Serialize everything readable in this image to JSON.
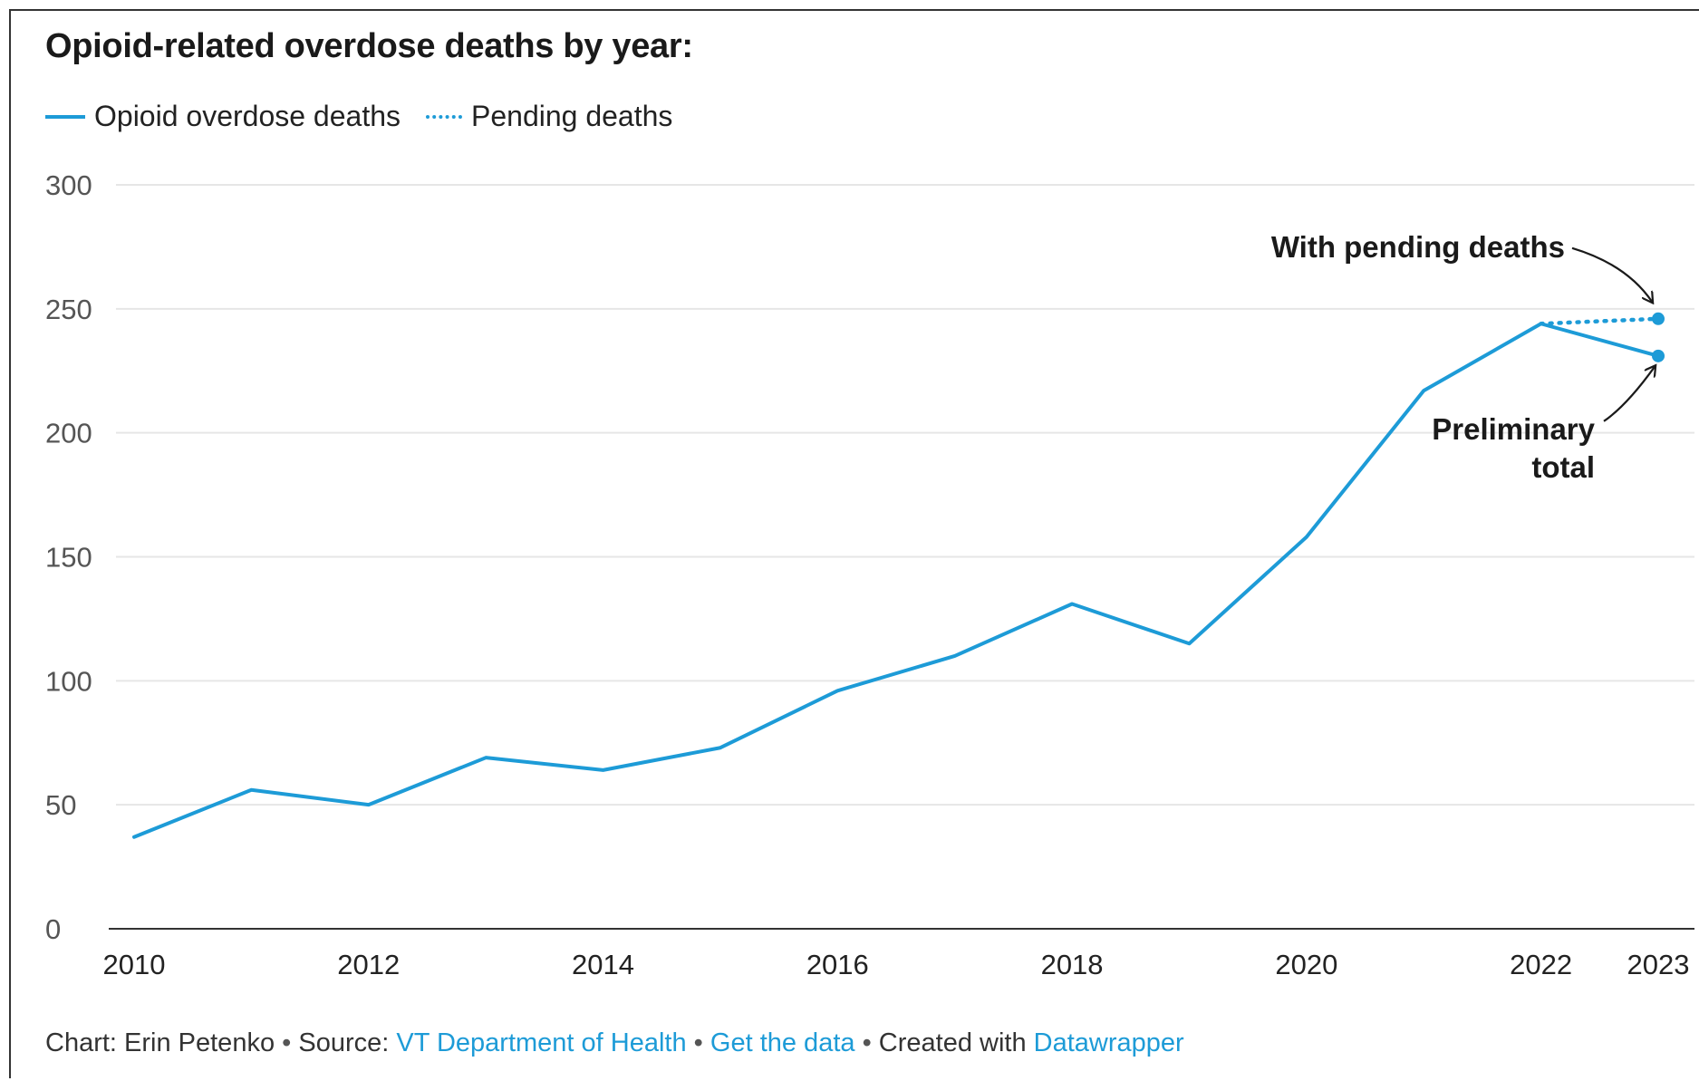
{
  "chart_data": {
    "type": "line",
    "title": "Opioid-related overdose deaths by year:",
    "x": [
      2010,
      2011,
      2012,
      2013,
      2014,
      2015,
      2016,
      2017,
      2018,
      2019,
      2020,
      2021,
      2022,
      2023
    ],
    "series": [
      {
        "name": "Opioid overdose deaths",
        "style": "solid",
        "color": "#1d9bd7",
        "values": [
          37,
          56,
          50,
          69,
          64,
          73,
          96,
          110,
          131,
          115,
          158,
          217,
          244,
          231
        ]
      },
      {
        "name": "Pending deaths",
        "style": "dotted",
        "color": "#1d9bd7",
        "x": [
          2022,
          2023
        ],
        "values": [
          244,
          246
        ]
      }
    ],
    "ylim": [
      0,
      300
    ],
    "yticks": [
      0,
      50,
      100,
      150,
      200,
      250,
      300
    ],
    "xticks": [
      2010,
      2012,
      2014,
      2016,
      2018,
      2020,
      2022,
      2023
    ],
    "grid": true,
    "legend_position": "top-left",
    "annotations": [
      {
        "text": "With pending deaths",
        "target_x": 2023,
        "target_y": 246
      },
      {
        "text_lines": [
          "Preliminary",
          "total"
        ],
        "target_x": 2023,
        "target_y": 231
      }
    ]
  },
  "footer": {
    "chart_by": "Chart: Erin Petenko",
    "source_label": "Source:",
    "source_link": "VT Department of Health",
    "data_link": "Get the data",
    "created_label": "Created with",
    "created_link": "Datawrapper",
    "separator": "•"
  }
}
